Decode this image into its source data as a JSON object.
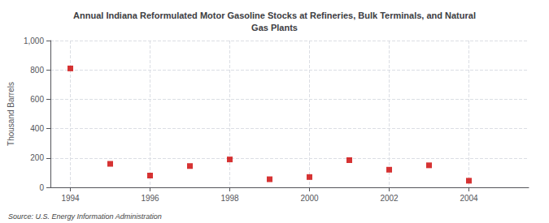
{
  "chart_data": {
    "type": "scatter",
    "title": "Annual Indiana Reformulated Motor Gasoline Stocks at Refineries, Bulk Terminals, and Natural\nGas Plants",
    "ylabel": "Thousand Barrels",
    "source": "Source: U.S. Energy Information Administration",
    "x": [
      1994,
      1995,
      1996,
      1997,
      1998,
      1999,
      2000,
      2001,
      2002,
      2003,
      2004
    ],
    "values": [
      810,
      160,
      80,
      145,
      190,
      55,
      70,
      185,
      120,
      150,
      45
    ],
    "color": "#cc0000",
    "marker": "square",
    "xlim": [
      1993.5,
      2005.5
    ],
    "xticks": [
      1994,
      1996,
      1998,
      2000,
      2002,
      2004
    ],
    "ylim": [
      0,
      1000
    ],
    "yticks": [
      0,
      200,
      400,
      600,
      800,
      {
        "value": 1000,
        "label": "1,000"
      }
    ],
    "grid": true
  }
}
